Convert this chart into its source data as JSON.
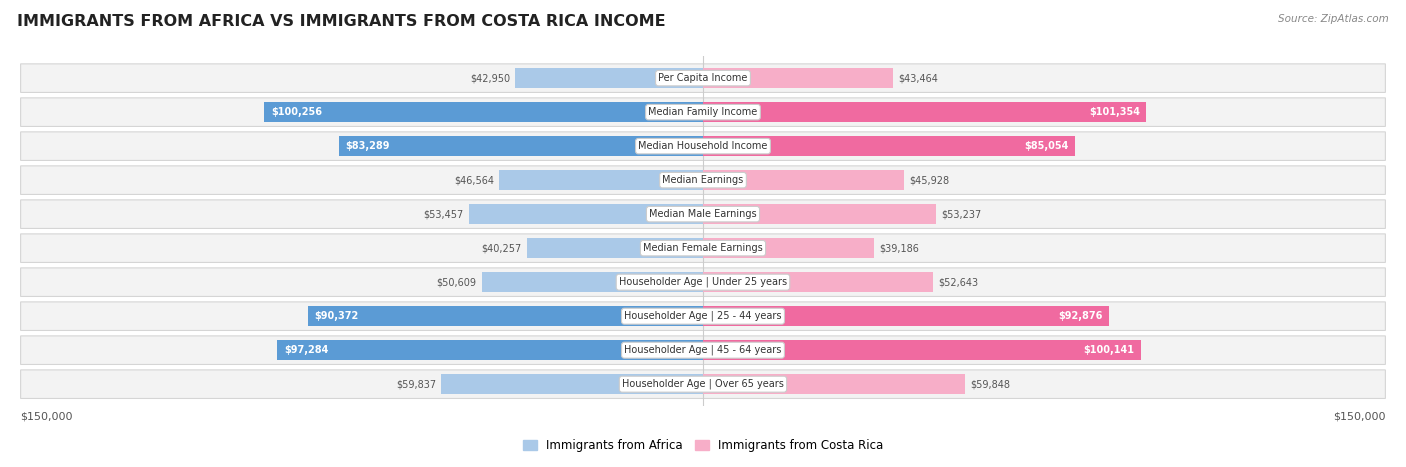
{
  "title": "IMMIGRANTS FROM AFRICA VS IMMIGRANTS FROM COSTA RICA INCOME",
  "source": "Source: ZipAtlas.com",
  "categories": [
    "Per Capita Income",
    "Median Family Income",
    "Median Household Income",
    "Median Earnings",
    "Median Male Earnings",
    "Median Female Earnings",
    "Householder Age | Under 25 years",
    "Householder Age | 25 - 44 years",
    "Householder Age | 45 - 64 years",
    "Householder Age | Over 65 years"
  ],
  "africa_values": [
    42950,
    100256,
    83289,
    46564,
    53457,
    40257,
    50609,
    90372,
    97284,
    59837
  ],
  "costa_rica_values": [
    43464,
    101354,
    85054,
    45928,
    53237,
    39186,
    52643,
    92876,
    100141,
    59848
  ],
  "africa_labels": [
    "$42,950",
    "$100,256",
    "$83,289",
    "$46,564",
    "$53,457",
    "$40,257",
    "$50,609",
    "$90,372",
    "$97,284",
    "$59,837"
  ],
  "costa_rica_labels": [
    "$43,464",
    "$101,354",
    "$85,054",
    "$45,928",
    "$53,237",
    "$39,186",
    "$52,643",
    "$92,876",
    "$100,141",
    "$59,848"
  ],
  "africa_color_light": "#aac9e8",
  "africa_color_dark": "#5b9bd5",
  "costa_rica_color_light": "#f7aec8",
  "costa_rica_color_dark": "#f06aa0",
  "max_val": 150000,
  "row_bg": "#f0f0f0",
  "row_border": "#d8d8d8",
  "label_inside_color": "#ffffff",
  "label_outside_color": "#555555",
  "threshold_inside": 65000,
  "legend_africa": "Immigrants from Africa",
  "legend_cr": "Immigrants from Costa Rica"
}
